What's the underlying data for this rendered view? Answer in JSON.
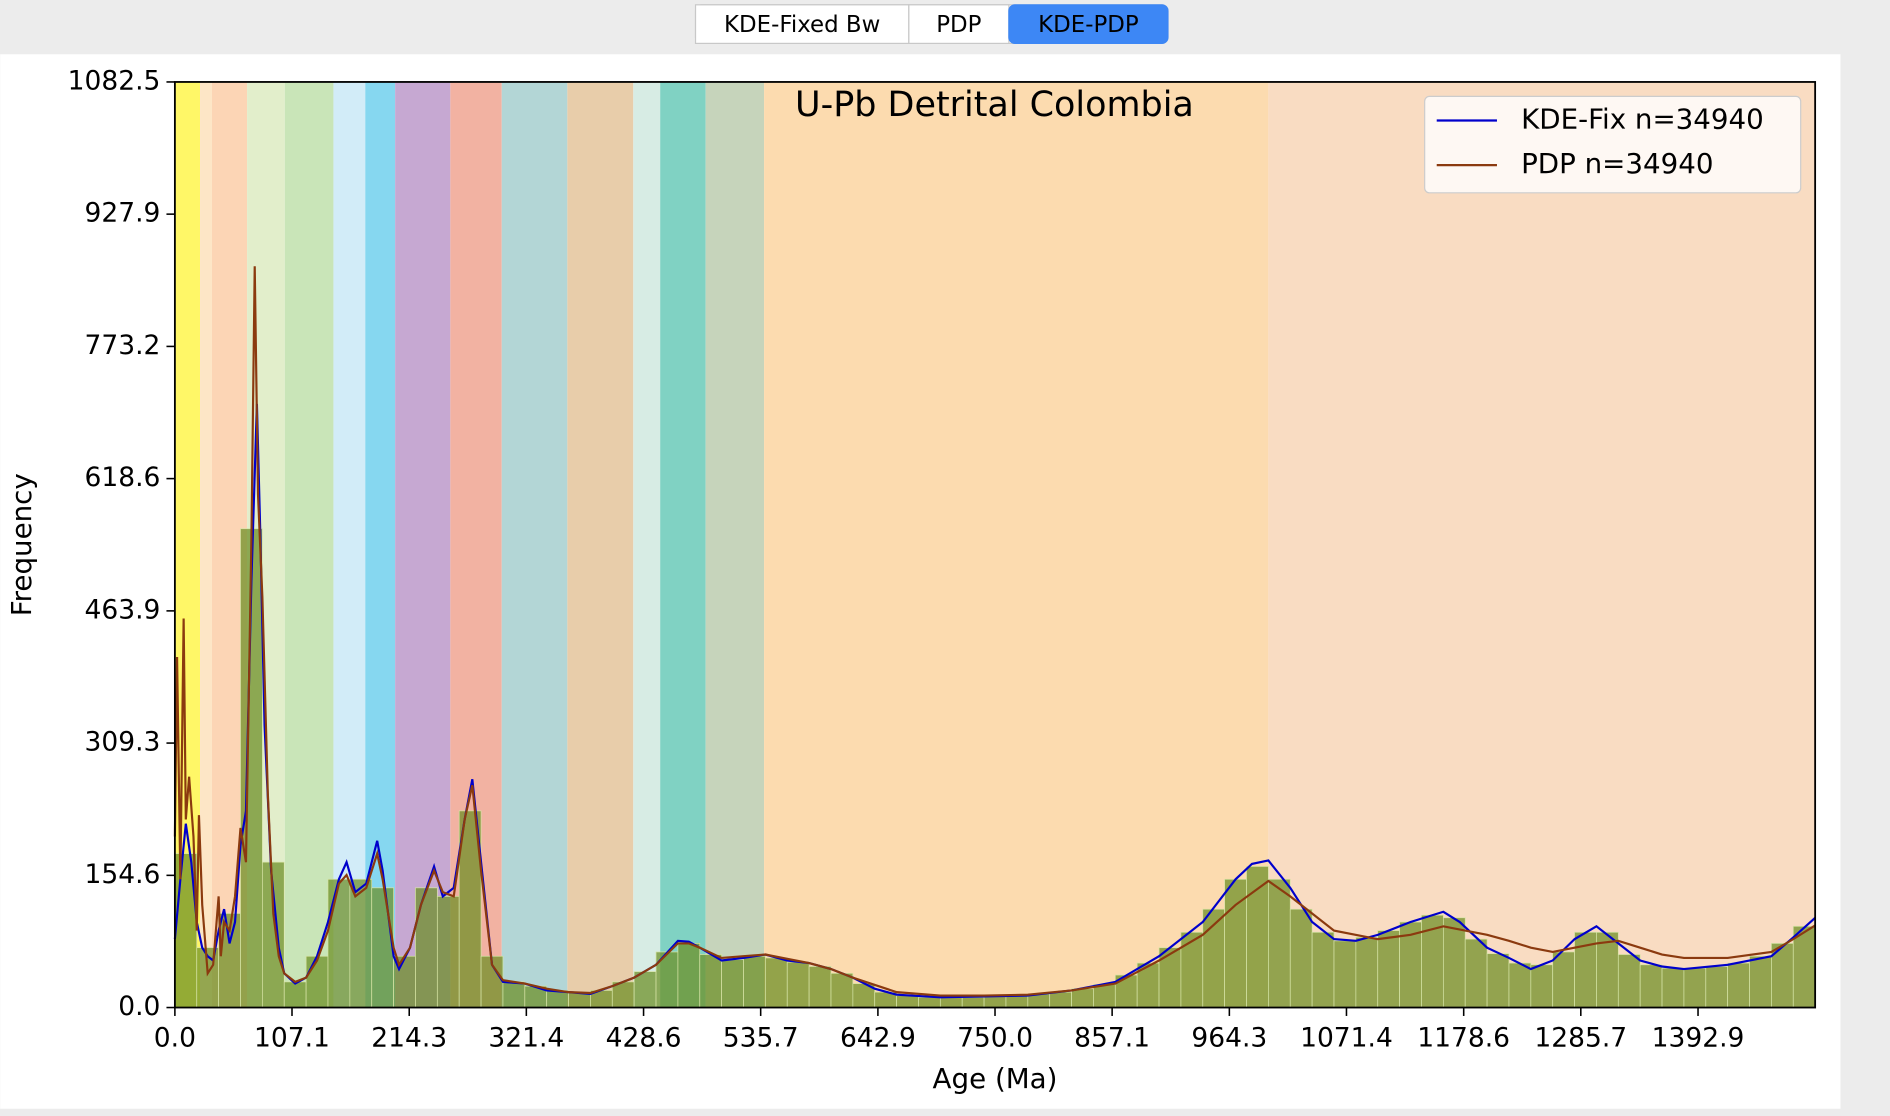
{
  "tabs": [
    {
      "label": "KDE-Fixed Bw",
      "selected": false
    },
    {
      "label": "PDP",
      "selected": false
    },
    {
      "label": "KDE-PDP",
      "selected": true
    }
  ],
  "chart_data": {
    "type": "histogram",
    "title": "U-Pb Detrital Colombia",
    "x_label": "Age (Ma)",
    "y_label": "Frequency",
    "xlim": [
      0,
      1500
    ],
    "ylim": [
      0,
      1082.5
    ],
    "xticks": [
      {
        "value": 0,
        "label": "0.0"
      },
      107.1,
      214.3,
      321.4,
      428.6,
      535.7,
      642.9,
      {
        "value": 750,
        "label": "750.0"
      },
      857.1,
      964.3,
      1071.4,
      1178.6,
      1285.7,
      1392.9
    ],
    "yticks": [
      {
        "value": 0,
        "label": "0.0"
      },
      154.6,
      309.3,
      463.9,
      618.6,
      773.2,
      927.9,
      1082.5
    ],
    "legend": "upper right",
    "bands": [
      {
        "start": 0,
        "end": 23,
        "color": "#fff767"
      },
      {
        "start": 23,
        "end": 33.9,
        "color": "#fde6c6"
      },
      {
        "start": 33.9,
        "end": 66,
        "color": "#fcd5b5"
      },
      {
        "start": 66,
        "end": 100.5,
        "color": "#e2eecb"
      },
      {
        "start": 100.5,
        "end": 145,
        "color": "#c9e5b8"
      },
      {
        "start": 145,
        "end": 174.1,
        "color": "#d2ecf8"
      },
      {
        "start": 174.1,
        "end": 201.4,
        "color": "#86d7f0"
      },
      {
        "start": 201.4,
        "end": 251.9,
        "color": "#c6a8d2"
      },
      {
        "start": 251.9,
        "end": 298.9,
        "color": "#f2b2a2"
      },
      {
        "start": 298.9,
        "end": 358.9,
        "color": "#b3d6d6"
      },
      {
        "start": 358.9,
        "end": 419.2,
        "color": "#e8cdaa"
      },
      {
        "start": 419.2,
        "end": 443.8,
        "color": "#d7ece4"
      },
      {
        "start": 443.8,
        "end": 485.4,
        "color": "#80d2c3"
      },
      {
        "start": 485.4,
        "end": 538.8,
        "color": "#c6d4bb"
      },
      {
        "start": 538.8,
        "end": 1000,
        "color": "#fcdbaf"
      },
      {
        "start": 1000,
        "end": 1500,
        "color": "#f9dcc2"
      }
    ],
    "color": "#6b8e23",
    "bins": [
      0,
      20,
      40,
      60,
      80,
      100,
      120,
      140,
      160,
      180,
      200,
      220,
      240,
      260,
      280,
      300,
      320,
      340,
      360,
      380,
      400,
      420,
      440,
      460,
      480,
      500,
      520,
      540,
      560,
      580,
      600,
      620,
      640,
      660,
      680,
      700,
      720,
      740,
      760,
      780,
      800,
      820,
      840,
      860,
      880,
      900,
      920,
      940,
      960,
      980,
      1000,
      1020,
      1040,
      1060,
      1080,
      1100,
      1120,
      1140,
      1160,
      1180,
      1200,
      1220,
      1240,
      1260,
      1280,
      1300,
      1320,
      1340,
      1360,
      1380,
      1400,
      1420,
      1440,
      1460,
      1480,
      1500
    ],
    "values": [
      180,
      70,
      110,
      560,
      170,
      30,
      60,
      150,
      150,
      140,
      60,
      140,
      130,
      230,
      60,
      30,
      25,
      20,
      17,
      20,
      30,
      42,
      65,
      75,
      62,
      56,
      60,
      58,
      53,
      48,
      40,
      28,
      18,
      14,
      12,
      12,
      12,
      13,
      14,
      16,
      18,
      22,
      27,
      38,
      52,
      70,
      88,
      115,
      150,
      165,
      150,
      115,
      88,
      78,
      82,
      90,
      100,
      108,
      105,
      80,
      63,
      52,
      50,
      65,
      88,
      88,
      62,
      50,
      46,
      46,
      48,
      52,
      60,
      75,
      95
    ],
    "series": [
      {
        "name": "KDE-Fix n=34940",
        "color": "#0000cc",
        "type": "line",
        "x": [
          0,
          5,
          10,
          15,
          20,
          25,
          30,
          35,
          40,
          45,
          50,
          55,
          60,
          65,
          70,
          75,
          78,
          82,
          88,
          95,
          100,
          110,
          120,
          130,
          140,
          150,
          157,
          165,
          175,
          185,
          190,
          200,
          205,
          215,
          225,
          237,
          245,
          255,
          265,
          272,
          280,
          290,
          300,
          320,
          340,
          360,
          380,
          400,
          420,
          440,
          460,
          470,
          480,
          500,
          520,
          540,
          560,
          580,
          600,
          620,
          640,
          660,
          700,
          740,
          780,
          820,
          860,
          900,
          940,
          970,
          985,
          1000,
          1020,
          1040,
          1060,
          1080,
          1100,
          1130,
          1160,
          1175,
          1200,
          1220,
          1240,
          1260,
          1280,
          1300,
          1320,
          1340,
          1360,
          1380,
          1420,
          1460,
          1480,
          1500
        ],
        "values": [
          80,
          150,
          215,
          170,
          100,
          70,
          60,
          55,
          90,
          115,
          75,
          100,
          190,
          230,
          500,
          706,
          560,
          330,
          160,
          70,
          40,
          28,
          35,
          60,
          100,
          150,
          170,
          135,
          145,
          195,
          160,
          60,
          45,
          70,
          120,
          165,
          130,
          140,
          220,
          267,
          170,
          50,
          30,
          28,
          20,
          18,
          16,
          25,
          35,
          50,
          78,
          77,
          70,
          55,
          58,
          62,
          55,
          52,
          45,
          35,
          22,
          15,
          12,
          13,
          14,
          20,
          30,
          60,
          100,
          150,
          168,
          172,
          140,
          100,
          80,
          78,
          85,
          100,
          112,
          100,
          70,
          58,
          45,
          55,
          80,
          95,
          75,
          55,
          48,
          45,
          50,
          60,
          82,
          105
        ]
      },
      {
        "name": "PDP n=34940",
        "color": "#8b3a0f",
        "type": "line",
        "x": [
          0,
          2,
          5,
          8,
          10,
          13,
          17,
          20,
          22,
          25,
          30,
          35,
          40,
          42,
          45,
          50,
          55,
          60,
          65,
          70,
          73,
          76,
          80,
          85,
          90,
          95,
          100,
          110,
          120,
          130,
          140,
          150,
          157,
          165,
          175,
          185,
          190,
          200,
          205,
          215,
          225,
          237,
          245,
          255,
          265,
          272,
          280,
          290,
          300,
          320,
          340,
          360,
          380,
          400,
          420,
          440,
          460,
          470,
          480,
          500,
          520,
          540,
          560,
          580,
          600,
          620,
          660,
          700,
          740,
          780,
          820,
          860,
          900,
          940,
          970,
          1000,
          1020,
          1040,
          1060,
          1100,
          1130,
          1160,
          1200,
          1220,
          1240,
          1260,
          1280,
          1300,
          1320,
          1340,
          1360,
          1380,
          1420,
          1460,
          1480,
          1500
        ],
        "values": [
          200,
          410,
          150,
          455,
          220,
          270,
          200,
          90,
          225,
          120,
          40,
          50,
          130,
          60,
          100,
          90,
          130,
          210,
          170,
          550,
          867,
          600,
          480,
          250,
          110,
          60,
          40,
          30,
          35,
          55,
          90,
          145,
          155,
          130,
          140,
          180,
          150,
          70,
          50,
          70,
          120,
          160,
          135,
          130,
          220,
          260,
          160,
          50,
          32,
          28,
          22,
          18,
          17,
          25,
          35,
          50,
          75,
          75,
          70,
          58,
          60,
          62,
          57,
          52,
          45,
          35,
          18,
          14,
          14,
          15,
          20,
          28,
          55,
          85,
          120,
          148,
          130,
          110,
          90,
          80,
          85,
          95,
          85,
          78,
          70,
          65,
          70,
          75,
          78,
          70,
          62,
          58,
          58,
          65,
          80,
          96
        ]
      }
    ]
  }
}
